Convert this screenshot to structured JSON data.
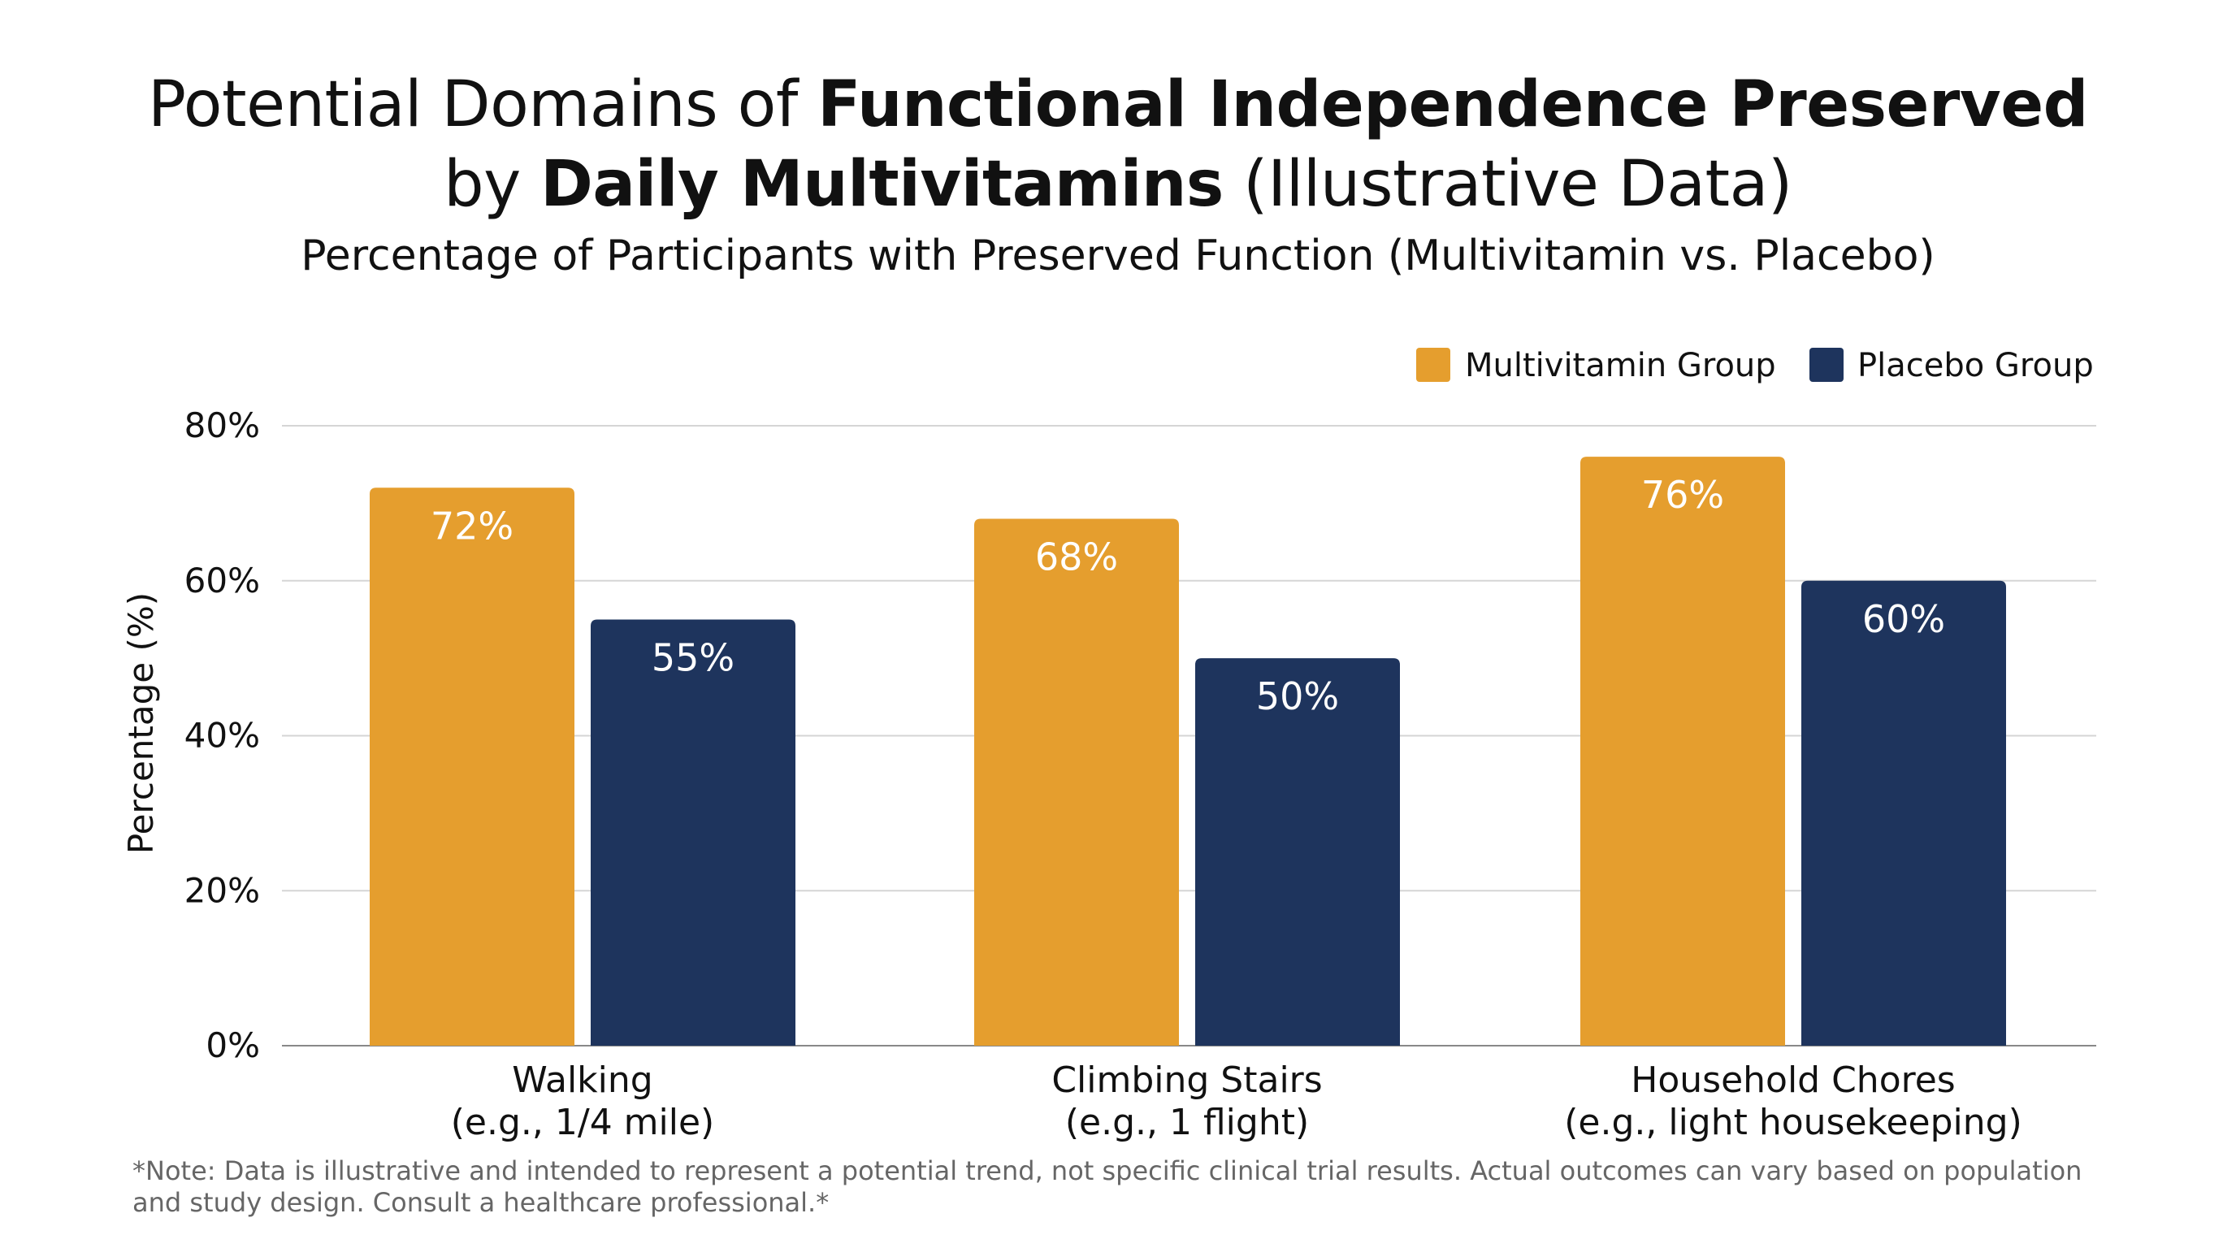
{
  "title": {
    "line1_prefix": "Potential Domains of ",
    "line1_bold": "Functional Independence Preserved",
    "line2_prefix": "by ",
    "line2_bold": "Daily Multivitamins",
    "line2_suffix": " (Illustrative Data)"
  },
  "subtitle": "Percentage of Participants with Preserved Function (Multivitamin vs. Placebo)",
  "note": "*Note: Data is illustrative and intended to represent a potential trend, not specific clinical trial results. Actual outcomes can vary based on population and study design. Consult a healthcare professional.*",
  "colors": {
    "multivitamin": "#E59E2E",
    "placebo": "#1E345D",
    "grid": "#D5D5D5",
    "axis": "#888888"
  },
  "chart_data": {
    "type": "bar",
    "title": "Potential Domains of Functional Independence Preserved by Daily Multivitamins (Illustrative Data)",
    "subtitle": "Percentage of Participants with Preserved Function (Multivitamin vs. Placebo)",
    "categories": [
      [
        "Walking",
        "(e.g., 1/4 mile)"
      ],
      [
        "Climbing Stairs",
        "(e.g., 1 flight)"
      ],
      [
        "Household Chores",
        "(e.g., light housekeeping)"
      ]
    ],
    "series": [
      {
        "name": "Multivitamin Group",
        "values": [
          72,
          68,
          76
        ],
        "labels": [
          "72%",
          "68%",
          "76%"
        ]
      },
      {
        "name": "Placebo Group",
        "values": [
          55,
          50,
          60
        ],
        "labels": [
          "55%",
          "50%",
          "60%"
        ]
      }
    ],
    "xlabel": "",
    "ylabel": "Percentage (%)",
    "ylim": [
      0,
      80
    ],
    "yticks": [
      0,
      20,
      40,
      60,
      80
    ],
    "ytick_labels": [
      "0%",
      "20%",
      "40%",
      "60%",
      "80%"
    ],
    "grid": true,
    "legend_position": "top-right"
  }
}
